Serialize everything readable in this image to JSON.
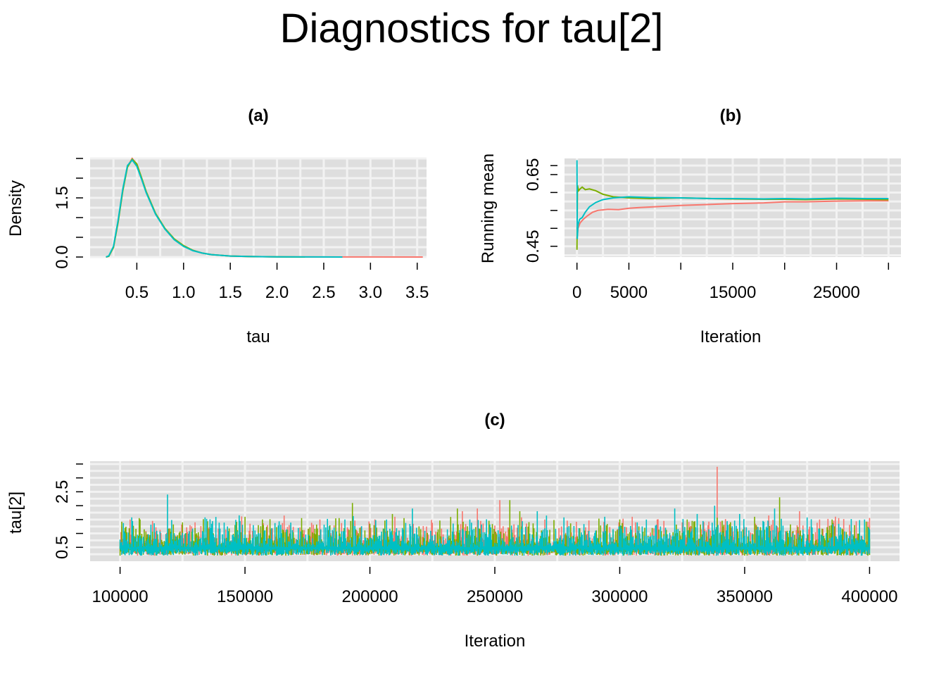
{
  "figure": {
    "title": "Diagnostics for tau[2]"
  },
  "chart_data": [
    {
      "id": "a",
      "type": "line",
      "title": "(a)",
      "xlabel": "tau",
      "ylabel": "Density",
      "xlim": [
        0.0,
        3.6
      ],
      "ylim": [
        0.0,
        2.5
      ],
      "xticks": [
        0.5,
        1.0,
        1.5,
        2.0,
        2.5,
        3.0,
        3.5
      ],
      "xtick_labels": [
        "0.5",
        "1.0",
        "1.5",
        "2.0",
        "2.5",
        "3.0",
        "3.5"
      ],
      "yticks_minor": [
        0.0,
        0.5,
        1.0,
        1.5,
        2.0,
        2.5
      ],
      "yticks_labeled": [
        0.0,
        1.5
      ],
      "ytick_labels": [
        "0.0",
        "1.5"
      ],
      "grid": true,
      "series": [
        {
          "color": "#F8766D",
          "x": [
            0.17,
            0.2,
            0.25,
            0.3,
            0.35,
            0.4,
            0.45,
            0.5,
            0.55,
            0.6,
            0.7,
            0.8,
            0.9,
            1.0,
            1.1,
            1.2,
            1.3,
            1.5,
            1.7,
            2.0,
            2.5,
            3.0,
            3.56
          ],
          "y": [
            0.0,
            0.02,
            0.25,
            0.9,
            1.7,
            2.3,
            2.5,
            2.35,
            2.0,
            1.65,
            1.1,
            0.72,
            0.45,
            0.28,
            0.17,
            0.1,
            0.06,
            0.025,
            0.012,
            0.005,
            0.002,
            0.001,
            0.0
          ]
        },
        {
          "color": "#7CAE00",
          "x": [
            0.17,
            0.2,
            0.25,
            0.3,
            0.35,
            0.4,
            0.45,
            0.5,
            0.55,
            0.6,
            0.7,
            0.8,
            0.9,
            1.0,
            1.1,
            1.2,
            1.3,
            1.5,
            1.7,
            2.0,
            2.3
          ],
          "y": [
            0.0,
            0.02,
            0.24,
            0.88,
            1.68,
            2.28,
            2.48,
            2.36,
            2.02,
            1.66,
            1.11,
            0.73,
            0.46,
            0.29,
            0.17,
            0.1,
            0.06,
            0.025,
            0.012,
            0.005,
            0.0
          ]
        },
        {
          "color": "#00BFC4",
          "x": [
            0.17,
            0.2,
            0.25,
            0.3,
            0.35,
            0.4,
            0.45,
            0.5,
            0.55,
            0.6,
            0.7,
            0.8,
            0.9,
            1.0,
            1.1,
            1.2,
            1.3,
            1.5,
            1.7,
            2.0,
            2.5,
            2.7
          ],
          "y": [
            0.0,
            0.03,
            0.27,
            0.93,
            1.73,
            2.32,
            2.46,
            2.3,
            1.98,
            1.63,
            1.09,
            0.71,
            0.44,
            0.27,
            0.16,
            0.1,
            0.06,
            0.025,
            0.012,
            0.005,
            0.002,
            0.0
          ]
        }
      ]
    },
    {
      "id": "b",
      "type": "line",
      "title": "(b)",
      "xlabel": "Iteration",
      "ylabel": "Running mean",
      "xlim": [
        -1200,
        31200
      ],
      "ylim": [
        0.42,
        0.695
      ],
      "xticks_minor": [
        0,
        5000,
        10000,
        15000,
        20000,
        25000,
        30000
      ],
      "xticks_labeled": [
        0,
        5000,
        15000,
        25000
      ],
      "xtick_labels": [
        "0",
        "5000",
        "15000",
        "25000"
      ],
      "yticks_minor": [
        0.45,
        0.5,
        0.55,
        0.6,
        0.65,
        0.675
      ],
      "yticks_labeled": [
        0.45,
        0.65
      ],
      "ytick_labels": [
        "0.45",
        "0.65"
      ],
      "grid": true,
      "series": [
        {
          "color": "#F8766D",
          "x": [
            0,
            100,
            300,
            600,
            1000,
            1500,
            2000,
            3000,
            4000,
            5000,
            6000,
            8000,
            10000,
            12000,
            15000,
            18000,
            20000,
            22000,
            25000,
            28000,
            30000
          ],
          "y": [
            0.47,
            0.5,
            0.515,
            0.525,
            0.535,
            0.545,
            0.55,
            0.553,
            0.552,
            0.556,
            0.558,
            0.561,
            0.564,
            0.566,
            0.569,
            0.571,
            0.574,
            0.574,
            0.576,
            0.577,
            0.577
          ]
        },
        {
          "color": "#7CAE00",
          "x": [
            0,
            50,
            150,
            300,
            500,
            800,
            1200,
            1800,
            2500,
            3500,
            5000,
            7000,
            10000,
            13000,
            15000,
            18000,
            20000,
            22000,
            25000,
            28000,
            30000
          ],
          "y": [
            0.44,
            0.62,
            0.605,
            0.61,
            0.615,
            0.608,
            0.61,
            0.605,
            0.595,
            0.588,
            0.585,
            0.583,
            0.585,
            0.583,
            0.582,
            0.581,
            0.581,
            0.58,
            0.582,
            0.581,
            0.58
          ]
        },
        {
          "color": "#00BFC4",
          "x": [
            0,
            30,
            100,
            250,
            500,
            800,
            1200,
            1800,
            2500,
            3500,
            5000,
            7000,
            10000,
            13000,
            15000,
            18000,
            20000,
            22000,
            25000,
            28000,
            30000
          ],
          "y": [
            0.69,
            0.47,
            0.51,
            0.525,
            0.53,
            0.545,
            0.56,
            0.572,
            0.58,
            0.585,
            0.588,
            0.586,
            0.585,
            0.583,
            0.583,
            0.582,
            0.583,
            0.582,
            0.584,
            0.583,
            0.583
          ]
        }
      ]
    },
    {
      "id": "c",
      "type": "line",
      "title": "(c)",
      "xlabel": "Iteration",
      "ylabel": "tau[2]",
      "xlim": [
        88000,
        412000
      ],
      "ylim": [
        0.0,
        3.6
      ],
      "xticks": [
        100000,
        150000,
        200000,
        250000,
        300000,
        350000,
        400000
      ],
      "xtick_labels": [
        "100000",
        "150000",
        "200000",
        "250000",
        "300000",
        "350000",
        "400000"
      ],
      "yticks_minor": [
        0.5,
        1.0,
        1.5,
        2.0,
        2.5,
        3.0,
        3.5
      ],
      "yticks_labeled": [
        0.5,
        2.5
      ],
      "ytick_labels": [
        "0.5",
        "2.5"
      ],
      "grid": true,
      "trace_range": [
        100000,
        400000
      ],
      "trace_floor": 0.2,
      "series": [
        {
          "color": "#F8766D",
          "spikes": [
            [
              104000,
              1.5
            ],
            [
              130000,
              1.4
            ],
            [
              180000,
              1.5
            ],
            [
              210000,
              1.6
            ],
            [
              237000,
              1.8
            ],
            [
              243000,
              1.9
            ],
            [
              252000,
              2.2
            ],
            [
              270000,
              1.5
            ],
            [
              305000,
              1.6
            ],
            [
              315000,
              1.5
            ],
            [
              325000,
              1.4
            ],
            [
              339000,
              3.4
            ],
            [
              372000,
              1.8
            ],
            [
              380000,
              1.5
            ]
          ]
        },
        {
          "color": "#7CAE00",
          "spikes": [
            [
              108000,
              1.5
            ],
            [
              150000,
              1.6
            ],
            [
              157000,
              1.5
            ],
            [
              193000,
              2.1
            ],
            [
              209000,
              1.7
            ],
            [
              235000,
              1.9
            ],
            [
              256000,
              2.2
            ],
            [
              260000,
              1.8
            ],
            [
              300000,
              1.5
            ],
            [
              327000,
              1.5
            ],
            [
              354000,
              1.6
            ],
            [
              364000,
              2.3
            ],
            [
              385000,
              1.5
            ]
          ]
        },
        {
          "color": "#00BFC4",
          "spikes": [
            [
              119000,
              2.4
            ],
            [
              190000,
              1.5
            ],
            [
              217000,
              1.9
            ],
            [
              240000,
              1.5
            ],
            [
              267000,
              1.8
            ],
            [
              294000,
              1.6
            ],
            [
              322000,
              1.9
            ],
            [
              331000,
              1.7
            ],
            [
              338000,
              2.0
            ],
            [
              348000,
              1.7
            ],
            [
              362000,
              1.9
            ],
            [
              398000,
              1.5
            ]
          ]
        }
      ]
    }
  ]
}
